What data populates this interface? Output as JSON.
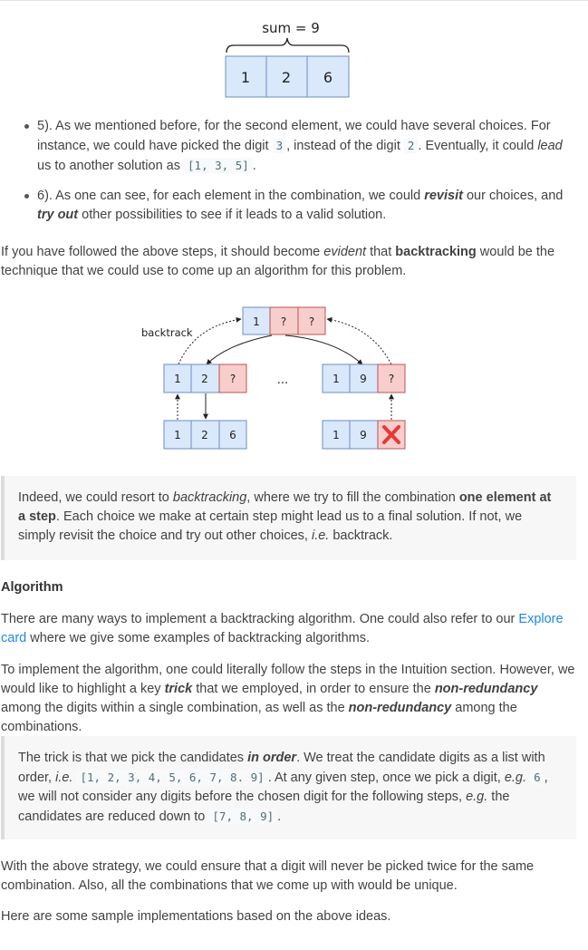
{
  "figure1": {
    "label": "sum = 9",
    "cells": [
      "1",
      "2",
      "6"
    ]
  },
  "bullet5": {
    "t1": "5). As we mentioned before, for the second element, we could have several choices. For instance, we could have picked the digit ",
    "c1": "3",
    "t2": ", instead of the digit ",
    "c2": "2",
    "t3": ". Eventually, it could ",
    "em1": "lead",
    "t4": " us to another solution as ",
    "c3": "[1, 3, 5]",
    "t5": "."
  },
  "bullet6": {
    "t1": "6). As one can see, for each element in the combination, we could ",
    "b1": "revisit",
    "t2": " our choices, and ",
    "b2": "try out",
    "t3": " other possibilities to see if it leads to a valid solution."
  },
  "para1": {
    "t1": "If you have followed the above steps, it should become ",
    "em1": "evident",
    "t2": " that ",
    "b1": "backtracking",
    "t3": " would be the technique that we could use to come up an algorithm for this problem."
  },
  "figure2": {
    "backtrack_label": "backtrack",
    "top_cells": [
      "1",
      "?",
      "?"
    ],
    "left_mid_cells": [
      "1",
      "2",
      "?"
    ],
    "right_mid_cells": [
      "1",
      "9",
      "?"
    ],
    "ellipsis": "...",
    "left_bottom_cells": [
      "1",
      "2",
      "6"
    ],
    "right_bottom_cells": [
      "1",
      "9"
    ]
  },
  "quote1": {
    "t1": "Indeed, we could resort to ",
    "em1": "backtracking",
    "t2": ", where we try to fill the combination ",
    "b1": "one element at a step",
    "t3": ". Each choice we make at certain step might lead us to a final solution. If not, we simply revisit the choice and try out other choices, ",
    "em2": "i.e.",
    "t4": " backtrack."
  },
  "algorithm_heading": "Algorithm",
  "para2": {
    "t1": "There are many ways to implement a backtracking algorithm. One could also refer to our ",
    "link": "Explore card",
    "t2": " where we give some examples of backtracking algorithms."
  },
  "para3": {
    "t1": "To implement the algorithm, one could literally follow the steps in the Intuition section. However, we would like to highlight a key ",
    "b1": "trick",
    "t2": " that we employed, in order to ensure the ",
    "b2": "non-redundancy",
    "t3": " among the digits within a single combination, as well as the ",
    "b3": "non-redundancy",
    "t4": " among the combinations."
  },
  "quote2": {
    "t1": "The trick is that we pick the candidates ",
    "b1": "in order",
    "t2": ". We treat the candidate digits as a list with order, ",
    "em1": "i.e.",
    "c1": "[1, 2, 3, 4, 5, 6, 7, 8. 9]",
    "t3": ". At any given step, once we pick a digit, ",
    "em2": "e.g.",
    "c2": "6",
    "t4": ", we will not consider any digits before the chosen digit for the following steps, ",
    "em3": "e.g.",
    "t5": " the candidates are reduced down to ",
    "c3": "[7, 8, 9]",
    "t6": "."
  },
  "para4": "With the above strategy, we could ensure that a digit will never be picked twice for the same combination. Also, all the combinations that we come up with would be unique.",
  "para5": "Here are some sample implementations based on the above ideas.",
  "colors": {
    "blue_cell": "#dae8fc",
    "blue_border": "#6c8ebf",
    "red_cell": "#f8cecc",
    "red_border": "#b85450",
    "link": "#1e88e5",
    "cross": "#e53935"
  }
}
